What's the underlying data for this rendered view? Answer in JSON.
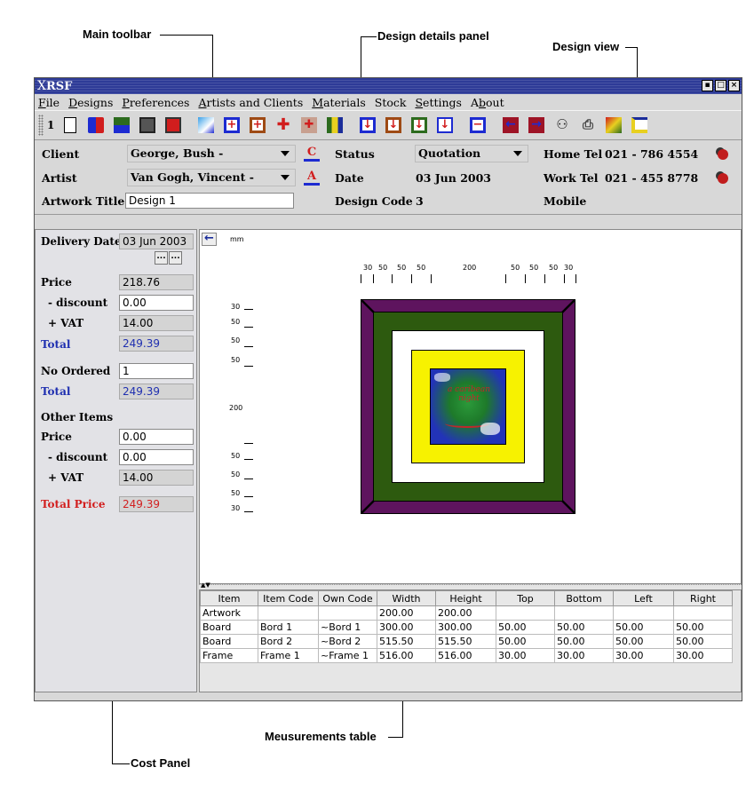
{
  "callouts": {
    "main_toolbar": "Main toolbar",
    "design_details": "Design details panel",
    "design_view": "Design view",
    "measurements_table": "Meusurements table",
    "cost_panel": "Cost Panel"
  },
  "window": {
    "title_x": "X",
    "title": "RSF",
    "btn_restore": "▪",
    "btn_max": "□",
    "btn_close": "×"
  },
  "menu": {
    "file": {
      "key": "F",
      "rest": "ile"
    },
    "designs": {
      "key": "D",
      "rest": "esigns"
    },
    "preferences": {
      "key": "P",
      "rest": "references"
    },
    "artists": {
      "key": "A",
      "rest": "rtists and Clients"
    },
    "materials": {
      "key": "M",
      "rest": "aterials"
    },
    "stock": {
      "key": "",
      "rest": "Stock"
    },
    "settings": {
      "key": "S",
      "rest": "ettings"
    },
    "about": {
      "pre": "A",
      "key": "b",
      "rest": "out"
    }
  },
  "toolbar": {
    "number": "1",
    "icons": [
      "new-document-icon",
      "add-design-icon",
      "import-icon",
      "save-icon",
      "save-red-icon",
      "image-icon",
      "add-board-icon",
      "add-frame-icon",
      "add-mount-icon",
      "remove-item-icon",
      "artwork-icon",
      "move-down-blue-icon",
      "move-down-brown-icon",
      "move-down-green-icon",
      "move-down-white-icon",
      "remove-icon",
      "arrow-left-icon",
      "arrow-right-icon",
      "binoculars-icon",
      "print-icon",
      "export-icon",
      "layout-icon"
    ],
    "colors": {
      "blue": "#1d2bd1",
      "red": "#d11d1d",
      "brown": "#7a3a1d",
      "green": "#2c6b1e",
      "navy": "#1b2d9a",
      "maroon": "#9e1426"
    }
  },
  "details": {
    "client_label": "Client",
    "client_value": "George, Bush -",
    "artist_label": "Artist",
    "artist_value": "Van Gogh, Vincent -",
    "artwork_title_label": "Artwork Title",
    "artwork_title_value": "Design 1",
    "status_label": "Status",
    "status_value": "Quotation",
    "date_label": "Date",
    "date_value": "03 Jun 2003",
    "design_code_label": "Design Code",
    "design_code_value": "3",
    "home_tel_label": "Home Tel",
    "home_tel_value": "021 - 786 4554",
    "work_tel_label": "Work Tel",
    "work_tel_value": "021 - 455 8778",
    "mobile_label": "Mobile",
    "mobile_value": ""
  },
  "cost": {
    "delivery_date_label": "Delivery Date",
    "delivery_date_value": "03 Jun 2003",
    "dot_btn": "...",
    "price_label": "Price",
    "price_value": "218.76",
    "discount_label": "- discount",
    "discount_value": "0.00",
    "vat_label": "+ VAT",
    "vat_value": "14.00",
    "total_label": "Total",
    "total_value": "249.39",
    "no_ordered_label": "No Ordered",
    "no_ordered_value": "1",
    "total2_label": "Total",
    "total2_value": "249.39",
    "other_items_label": "Other Items",
    "other_price_label": "Price",
    "other_price_value": "0.00",
    "other_discount_label": "- discount",
    "other_discount_value": "0.00",
    "other_vat_label": "+ VAT",
    "other_vat_value": "14.00",
    "total_price_label": "Total Price",
    "total_price_value": "249.39"
  },
  "view": {
    "unit": "mm",
    "top_ruler": [
      "30",
      "50",
      "50",
      "50",
      "200",
      "50",
      "50",
      "50",
      "30"
    ],
    "left_ruler": [
      "30",
      "50",
      "50",
      "50",
      "200",
      "50",
      "50",
      "50",
      "30"
    ],
    "colors": {
      "frame": "#5e145e",
      "board2": "#2d5a0f",
      "board1": "#ffffff",
      "mount": "#f7f200",
      "art_bg": "#2233b8",
      "art_mid": "#1e7a2a"
    },
    "artwork_text": "a caribean night"
  },
  "table": {
    "headers": [
      "Item",
      "Item Code",
      "Own Code",
      "Width",
      "Height",
      "Top",
      "Bottom",
      "Left",
      "Right"
    ],
    "rows": [
      [
        "Artwork",
        "",
        "",
        "200.00",
        "200.00",
        "",
        "",
        "",
        ""
      ],
      [
        "Board",
        "Bord 1",
        "~Bord 1",
        "300.00",
        "300.00",
        "50.00",
        "50.00",
        "50.00",
        "50.00"
      ],
      [
        "Board",
        "Bord 2",
        "~Bord 2",
        "515.50",
        "515.50",
        "50.00",
        "50.00",
        "50.00",
        "50.00"
      ],
      [
        "Frame",
        "Frame 1",
        "~Frame 1",
        "516.00",
        "516.00",
        "30.00",
        "30.00",
        "30.00",
        "30.00"
      ]
    ]
  }
}
